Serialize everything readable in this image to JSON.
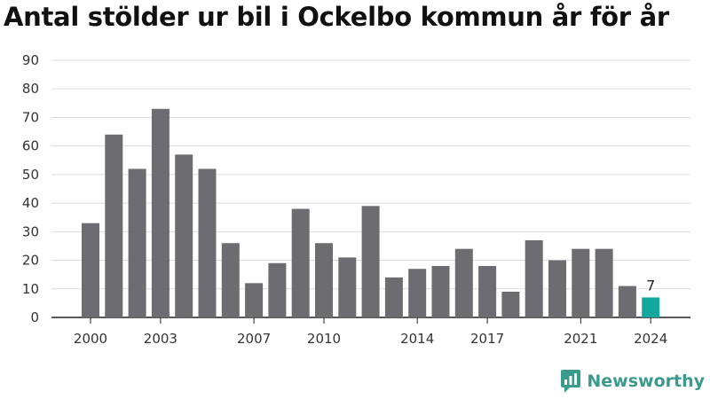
{
  "chart_data": {
    "type": "bar",
    "title": "Antal stölder ur bil i Ockelbo kommun år för år",
    "xlabel": "",
    "ylabel": "",
    "ylim": [
      0,
      90
    ],
    "yticks": [
      0,
      10,
      20,
      30,
      40,
      50,
      60,
      70,
      80,
      90
    ],
    "grid": true,
    "categories": [
      "2000",
      "2001",
      "2002",
      "2003",
      "2004",
      "2005",
      "2006",
      "2007",
      "2008",
      "2009",
      "2010",
      "2011",
      "2012",
      "2013",
      "2014",
      "2015",
      "2016",
      "2017",
      "2018",
      "2019",
      "2020",
      "2021",
      "2022",
      "2023",
      "2024"
    ],
    "xtick_labels": [
      "2000",
      "2003",
      "2007",
      "2010",
      "2014",
      "2017",
      "2021",
      "2024"
    ],
    "values": [
      33,
      64,
      52,
      73,
      57,
      52,
      26,
      12,
      19,
      38,
      26,
      21,
      39,
      14,
      17,
      18,
      24,
      18,
      9,
      27,
      20,
      24,
      24,
      11,
      7
    ],
    "bar_color": "#6d6c71",
    "highlight": {
      "category": "2024",
      "color": "#13a89e",
      "label": "7"
    }
  },
  "brand": {
    "name": "Newsworthy",
    "color": "#3a9a8c"
  }
}
